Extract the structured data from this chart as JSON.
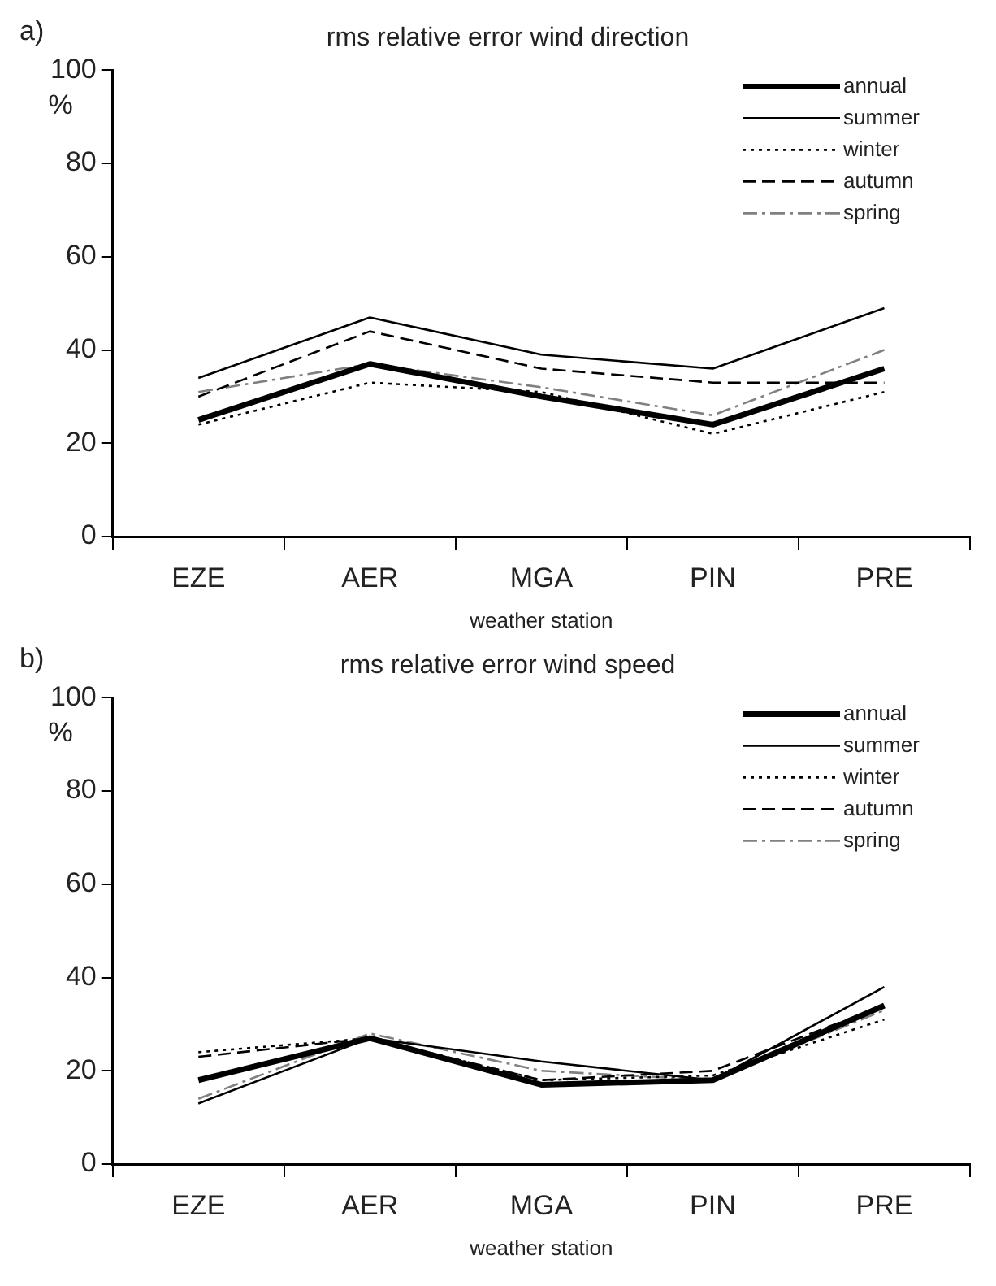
{
  "chart_data": [
    {
      "type": "line",
      "title": "rms relative error wind direction",
      "xlabel": "weather station",
      "ylabel": "%",
      "annotations": [
        "a)"
      ],
      "categories": [
        "EZE",
        "AER",
        "MGA",
        "PIN",
        "PRE"
      ],
      "series": [
        {
          "name": "annual",
          "color": "#000000",
          "line_style": "solid",
          "values": [
            25,
            37,
            30,
            24,
            36
          ]
        },
        {
          "name": "summer",
          "color": "#000000",
          "line_style": "solid",
          "values": [
            34,
            47,
            39,
            36,
            49
          ]
        },
        {
          "name": "winter",
          "color": "#000000",
          "line_style": "dotted",
          "values": [
            24,
            33,
            31,
            22,
            31
          ]
        },
        {
          "name": "autumn",
          "color": "#000000",
          "line_style": "dashed",
          "values": [
            30,
            44,
            36,
            33,
            33
          ]
        },
        {
          "name": "spring",
          "color": "#808080",
          "line_style": "dashdot",
          "values": [
            31,
            37,
            32,
            26,
            40
          ]
        }
      ],
      "ylim": [
        0,
        100
      ],
      "yticks": [
        0,
        20,
        40,
        60,
        80,
        100
      ],
      "grid": false,
      "legend": "top right",
      "marker": "none"
    },
    {
      "type": "line",
      "title": "rms relative error wind speed",
      "xlabel": "weather station",
      "ylabel": "%",
      "annotations": [
        "b)"
      ],
      "categories": [
        "EZE",
        "AER",
        "MGA",
        "PIN",
        "PRE"
      ],
      "series": [
        {
          "name": "annual",
          "color": "#000000",
          "line_style": "solid",
          "values": [
            18,
            27,
            17,
            18,
            34
          ]
        },
        {
          "name": "summer",
          "color": "#000000",
          "line_style": "solid",
          "values": [
            13,
            27,
            22,
            18,
            38
          ]
        },
        {
          "name": "winter",
          "color": "#000000",
          "line_style": "dotted",
          "values": [
            24,
            27,
            18,
            19,
            31
          ]
        },
        {
          "name": "autumn",
          "color": "#000000",
          "line_style": "dashed",
          "values": [
            23,
            27,
            18,
            20,
            34
          ]
        },
        {
          "name": "spring",
          "color": "#808080",
          "line_style": "dashdot",
          "values": [
            14,
            28,
            20,
            18,
            33
          ]
        }
      ],
      "ylim": [
        0,
        100
      ],
      "yticks": [
        0,
        20,
        40,
        60,
        80,
        100
      ],
      "grid": false,
      "legend": "top right",
      "marker": "none"
    }
  ]
}
